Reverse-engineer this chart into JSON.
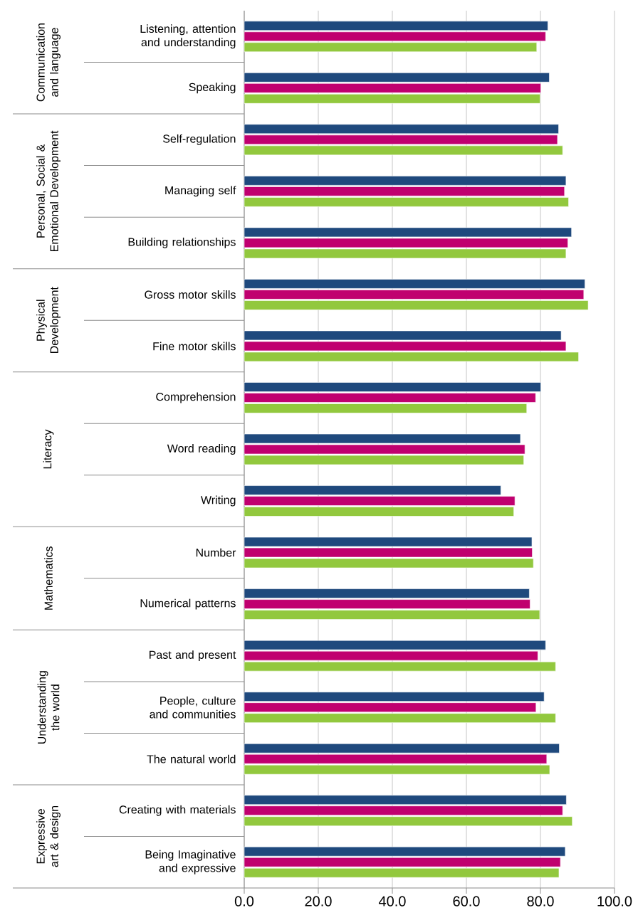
{
  "chart_data": {
    "type": "bar",
    "orientation": "horizontal",
    "categories": [
      "Listening, attention and understanding",
      "Speaking",
      "Self-regulation",
      "Managing self",
      "Building relationships",
      "Gross motor skills",
      "Fine motor skills",
      "Comprehension",
      "Word reading",
      "Writing",
      "Number",
      "Numerical patterns",
      "Past and present",
      "People, culture and communities",
      "The natural world",
      "Creating with materials",
      "Being Imaginative and expressive"
    ],
    "series": [
      {
        "color": "#92c83e",
        "values": [
          79.0,
          79.9,
          86.0,
          87.6,
          86.9,
          92.9,
          90.3,
          76.3,
          75.5,
          72.8,
          78.1,
          79.8,
          84.1,
          84.1,
          82.5,
          88.6,
          85.0
        ]
      },
      {
        "color": "#c0006f",
        "values": [
          81.4,
          80.1,
          84.6,
          86.5,
          87.4,
          91.7,
          86.9,
          78.7,
          75.8,
          73.1,
          77.8,
          77.2,
          79.3,
          78.8,
          81.7,
          86.0,
          85.4
        ]
      },
      {
        "color": "#1f497d",
        "values": [
          82.0,
          82.4,
          84.9,
          86.9,
          88.4,
          92.0,
          85.6,
          80.1,
          74.6,
          69.3,
          77.7,
          77.0,
          81.4,
          81.0,
          85.1,
          87.0,
          86.7
        ]
      }
    ],
    "xlim": [
      0,
      100
    ],
    "xticks": [
      {
        "value": 0,
        "label": "0.0"
      },
      {
        "value": 20,
        "label": "20.0"
      },
      {
        "value": 40,
        "label": "40.0"
      },
      {
        "value": 60,
        "label": "60.0"
      },
      {
        "value": 80,
        "label": "80.0"
      },
      {
        "value": 100,
        "label": "100.0"
      }
    ],
    "grid": "x",
    "annotations": [
      "Communication and language",
      "Personal, Social & Emotional Development",
      "Physical Development",
      "Literacy",
      "Mathematics",
      "Understanding the world",
      "Expressive art & design"
    ]
  }
}
